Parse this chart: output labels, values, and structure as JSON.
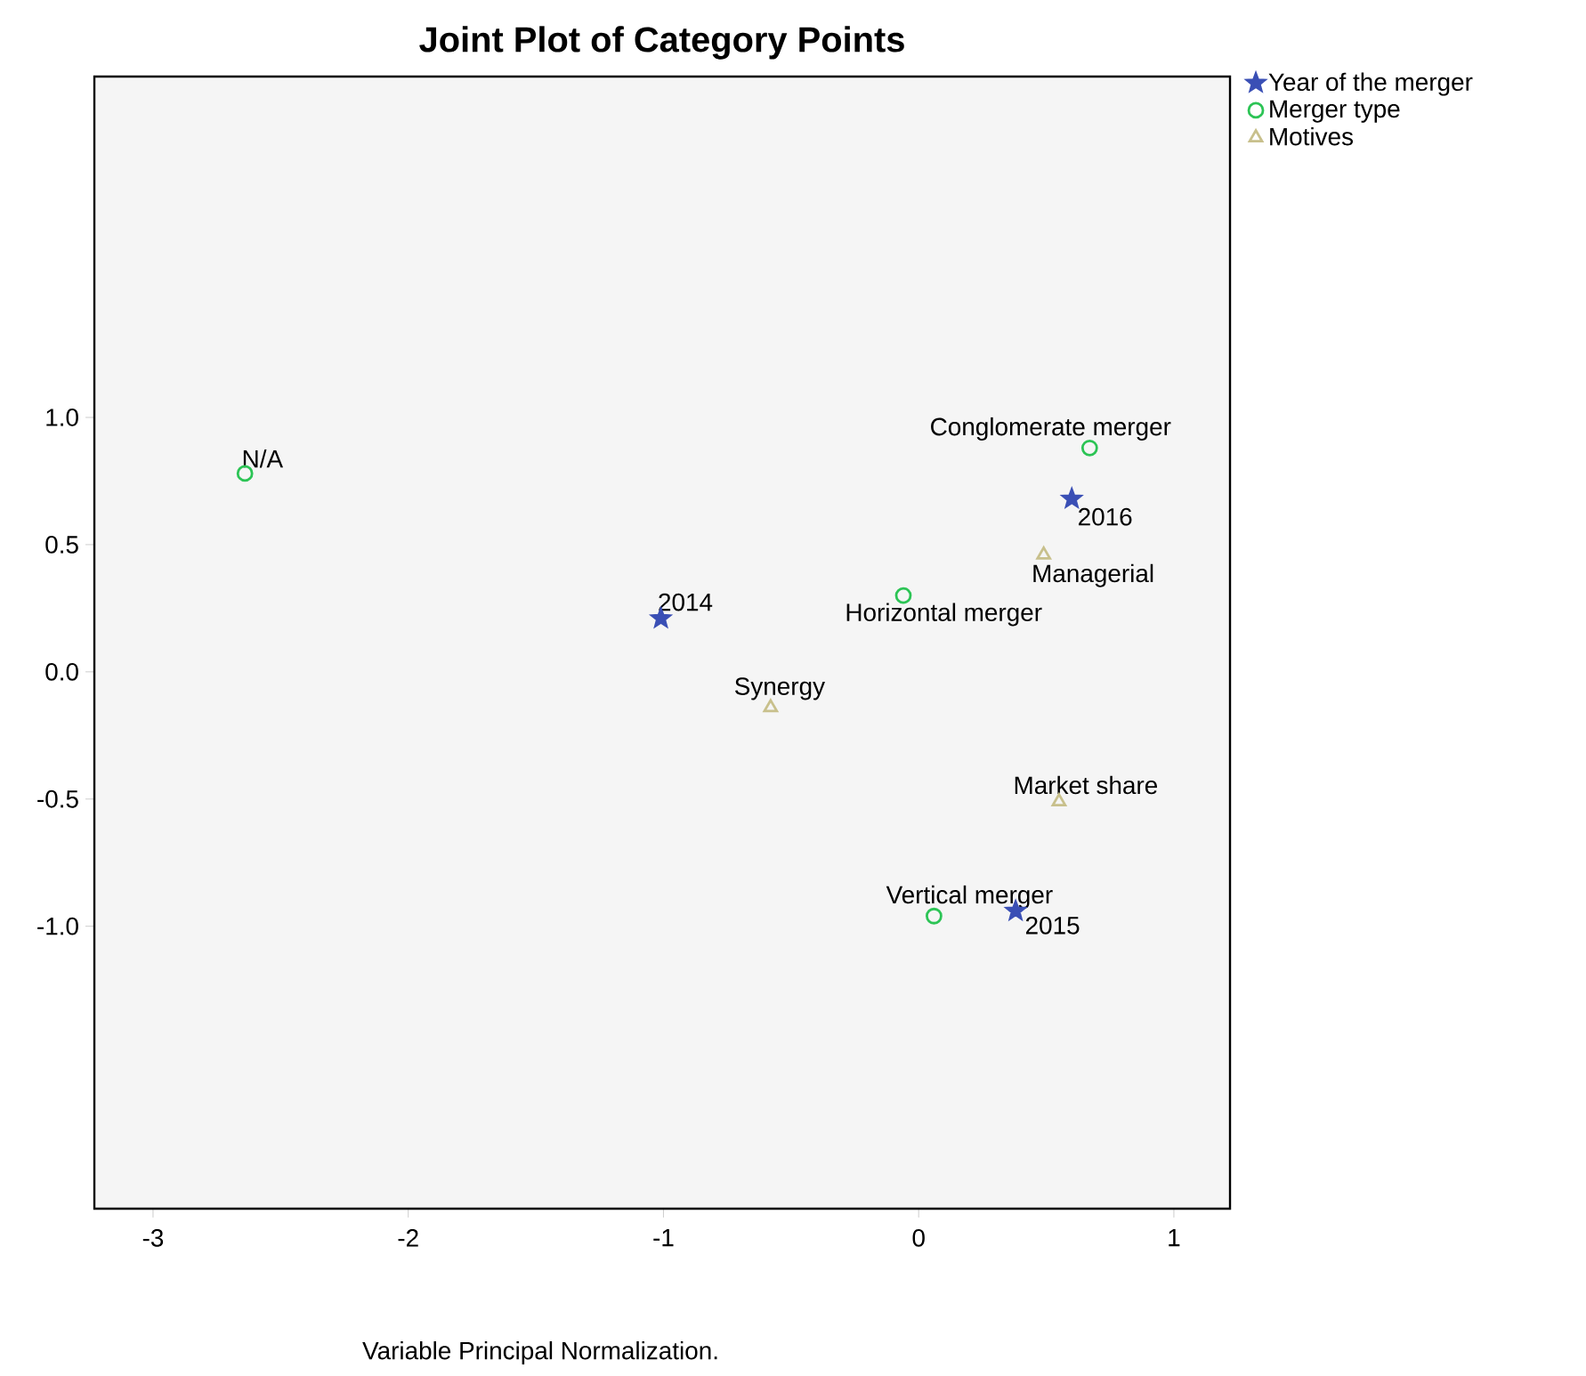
{
  "chart_data": {
    "type": "scatter",
    "title": "Joint Plot of Category Points",
    "xlim": [
      -3.23,
      1.22
    ],
    "ylim": [
      -2.11,
      2.34
    ],
    "xticks": [
      -3,
      -2,
      -1,
      0,
      1
    ],
    "yticks": [
      {
        "value": -1,
        "label": "-1.0"
      },
      {
        "value": -0.5,
        "label": "-0.5"
      },
      {
        "value": 0,
        "label": "0.0"
      },
      {
        "value": 0.5,
        "label": "0.5"
      },
      {
        "value": 1,
        "label": "1.0"
      }
    ],
    "grid": false,
    "legend": "top right",
    "series": [
      {
        "name": "Year of the merger",
        "color": "#3a4fb5",
        "marker": "star",
        "x": [
          -1.01,
          0.38,
          0.6
        ],
        "values": [
          0.21,
          -0.94,
          0.68
        ]
      },
      {
        "name": "Merger type",
        "color": "#2cc455",
        "marker": "circle",
        "x": [
          -2.64,
          0.67,
          -0.06,
          0.06
        ],
        "values": [
          0.78,
          0.88,
          0.3,
          -0.96
        ]
      },
      {
        "name": "Motives",
        "color": "#c8c08c",
        "marker": "triangle",
        "x": [
          0.49,
          -0.58,
          0.55
        ],
        "values": [
          0.46,
          -0.14,
          -0.51
        ]
      }
    ],
    "annotations": [
      {
        "text": "N/A",
        "x": -2.64,
        "y": 0.78
      },
      {
        "text": "Conglomerate merger",
        "x": 0.67,
        "y": 0.88
      },
      {
        "text": "2016",
        "x": 0.6,
        "y": 0.68
      },
      {
        "text": "Managerial",
        "x": 0.49,
        "y": 0.46
      },
      {
        "text": "2014",
        "x": -1.01,
        "y": 0.21
      },
      {
        "text": "Horizontal merger",
        "x": -0.06,
        "y": 0.3
      },
      {
        "text": "Synergy",
        "x": -0.58,
        "y": -0.14
      },
      {
        "text": "Market share",
        "x": 0.55,
        "y": -0.51
      },
      {
        "text": "Vertical merger",
        "x": 0.06,
        "y": -0.96
      },
      {
        "text": "2015",
        "x": 0.38,
        "y": -0.94
      },
      "Variable Principal Normalization."
    ]
  }
}
